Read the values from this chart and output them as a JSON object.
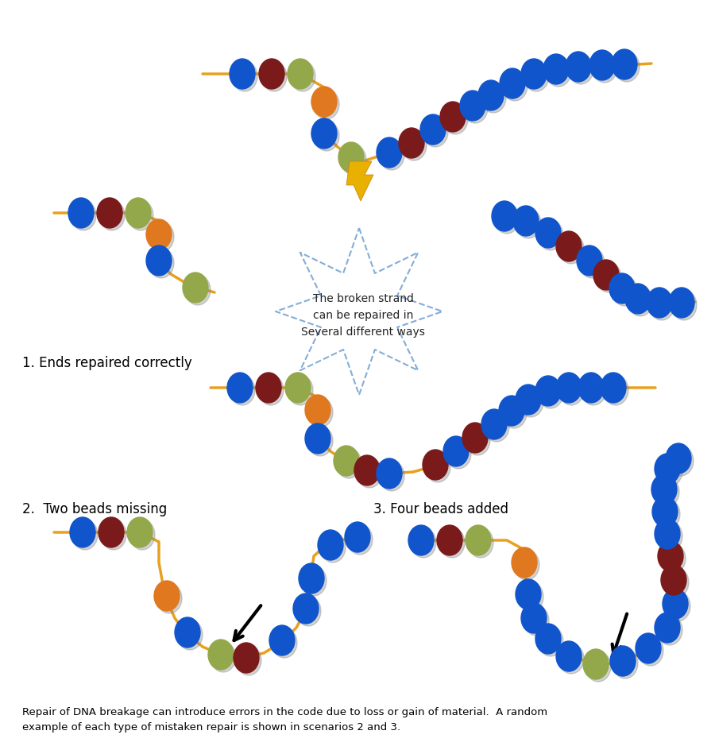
{
  "bead_colors": {
    "blue": "#1155cc",
    "darkred": "#7b1a1a",
    "green": "#93a84a",
    "orange": "#e07820",
    "line": "#e8a020"
  },
  "star_color": "#6699cc",
  "title_text": "The broken strand\ncan be repaired in\nSeveral different ways",
  "label1": "1. Ends repaired correctly",
  "label2": "2.  Two beads missing",
  "label3": "3. Four beads added",
  "caption": "Repair of DNA breakage can introduce errors in the code due to loss or gain of material.  A random\nexample of each type of mistaken repair is shown in scenarios 2 and 3.",
  "bg_color": "#ffffff"
}
